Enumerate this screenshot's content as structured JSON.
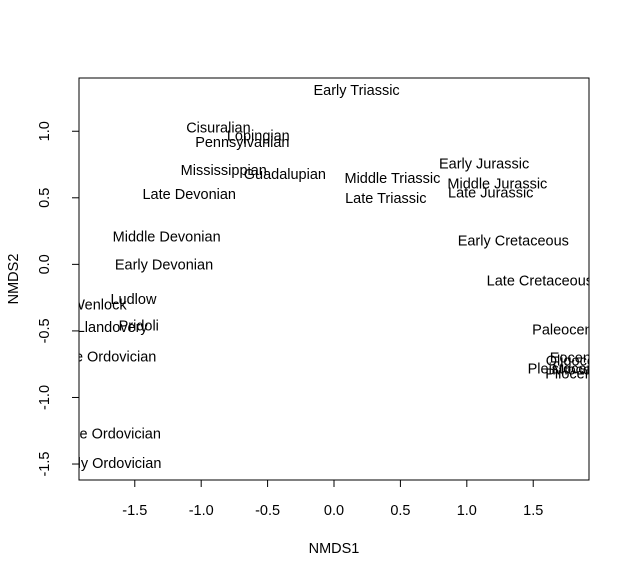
{
  "chart_data": {
    "type": "scatter",
    "marker": "text-label",
    "xlabel": "NMDS1",
    "ylabel": "NMDS2",
    "xlim": [
      -1.92,
      1.92
    ],
    "ylim": [
      -1.62,
      1.4
    ],
    "x_ticks": [
      -1.5,
      -1.0,
      -0.5,
      0.0,
      0.5,
      1.0,
      1.5
    ],
    "x_tick_labels": [
      "-1.5",
      "-1.0",
      "-0.5",
      "0.0",
      "0.5",
      "1.0",
      "1.5"
    ],
    "y_ticks": [
      -1.5,
      -1.0,
      -0.5,
      0.0,
      0.5,
      1.0
    ],
    "y_tick_labels": [
      "-1.5",
      "-1.0",
      "-0.5",
      "0.0",
      "0.5",
      "1.0"
    ],
    "grid": false,
    "legend": "none",
    "clip_labels_to_plot": true,
    "points": [
      {
        "label": "Early Triassic",
        "x": 0.17,
        "y": 1.3
      },
      {
        "label": "Cisuralian",
        "x": -0.87,
        "y": 1.02
      },
      {
        "label": "Lopingian",
        "x": -0.57,
        "y": 0.96
      },
      {
        "label": "Pennsylvanian",
        "x": -0.69,
        "y": 0.91
      },
      {
        "label": "Mississippian",
        "x": -0.83,
        "y": 0.7
      },
      {
        "label": "Guadalupian",
        "x": -0.37,
        "y": 0.67
      },
      {
        "label": "Late Devonian",
        "x": -1.09,
        "y": 0.52
      },
      {
        "label": "Early Jurassic",
        "x": 1.13,
        "y": 0.75
      },
      {
        "label": "Middle Triassic",
        "x": 0.44,
        "y": 0.64
      },
      {
        "label": "Middle Jurassic",
        "x": 1.23,
        "y": 0.6
      },
      {
        "label": "Late Jurassic",
        "x": 1.18,
        "y": 0.53
      },
      {
        "label": "Late Triassic",
        "x": 0.39,
        "y": 0.49
      },
      {
        "label": "Middle Devonian",
        "x": -1.26,
        "y": 0.2
      },
      {
        "label": "Early Cretaceous",
        "x": 1.35,
        "y": 0.17
      },
      {
        "label": "Early Devonian",
        "x": -1.28,
        "y": -0.01
      },
      {
        "label": "Late Cretaceous",
        "x": 1.55,
        "y": -0.13
      },
      {
        "label": "Ludlow",
        "x": -1.51,
        "y": -0.27
      },
      {
        "label": "Wenlock",
        "x": -1.77,
        "y": -0.31
      },
      {
        "label": "Pridoli",
        "x": -1.47,
        "y": -0.47
      },
      {
        "label": "Llandovery",
        "x": -1.67,
        "y": -0.48
      },
      {
        "label": "Paleocene",
        "x": 1.75,
        "y": -0.5
      },
      {
        "label": "Late Ordovician",
        "x": -1.72,
        "y": -0.7
      },
      {
        "label": "Eocene",
        "x": 1.81,
        "y": -0.71
      },
      {
        "label": "Oligocene",
        "x": 1.84,
        "y": -0.73
      },
      {
        "label": "Pleistocene",
        "x": 1.74,
        "y": -0.79
      },
      {
        "label": "Miocene",
        "x": 1.85,
        "y": -0.8
      },
      {
        "label": "Pliocene",
        "x": 1.8,
        "y": -0.83
      },
      {
        "label": "Middle Ordovician",
        "x": -1.74,
        "y": -1.28
      },
      {
        "label": "Early Ordovician",
        "x": -1.7,
        "y": -1.5
      }
    ]
  }
}
